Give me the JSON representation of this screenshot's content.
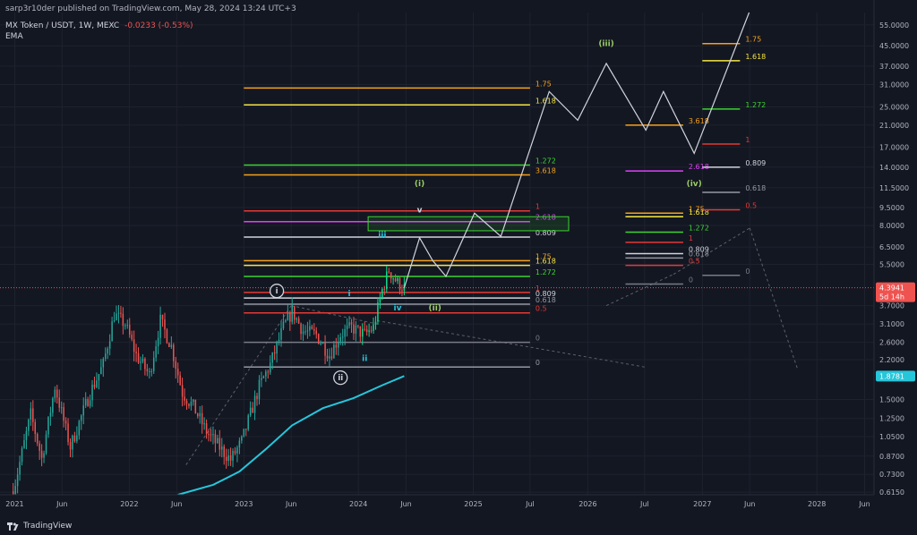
{
  "header": {
    "publisher": "sarp3r10der published on TradingView.com, May 28, 2024 13:24 UTC+3",
    "symbol": "MX Token / USDT, 1W, MEXC",
    "change": "-0.0233 (-0.53%)",
    "indicator": "EMA"
  },
  "footer": {
    "brand": "TradingView"
  },
  "colors": {
    "background": "#131722",
    "up": "#26a69a",
    "up_bright": "#11d68c",
    "down": "#ef5350",
    "ema": "#26c6da",
    "fib_orange": "#f7a21b",
    "fib_yellow": "#f5e642",
    "fib_green": "#3dd431",
    "fib_red": "#e53935",
    "fib_magenta": "#e040fb",
    "fib_white": "#d1d4dc",
    "fib_gray": "#9598a1",
    "wave_cyan": "#26c6da",
    "wave_green": "#9ccc65"
  },
  "chart_data": {
    "type": "candlestick",
    "title": "MX Token / USDT, 1W, MEXC",
    "y_scale": "log",
    "ylim": [
      0.6,
      62
    ],
    "x_range": [
      "2020-11-15",
      "2028-07-01"
    ],
    "x_ticks": [
      {
        "label": "2021",
        "date": "2021-01-01"
      },
      {
        "label": "Jun",
        "date": "2021-06-01"
      },
      {
        "label": "2022",
        "date": "2022-01-01"
      },
      {
        "label": "Jun",
        "date": "2022-06-01"
      },
      {
        "label": "2023",
        "date": "2023-01-01"
      },
      {
        "label": "Jun",
        "date": "2023-06-01"
      },
      {
        "label": "2024",
        "date": "2024-01-01"
      },
      {
        "label": "Jun",
        "date": "2024-06-01"
      },
      {
        "label": "2025",
        "date": "2025-01-01"
      },
      {
        "label": "Jul",
        "date": "2025-07-01"
      },
      {
        "label": "2026",
        "date": "2026-01-01"
      },
      {
        "label": "Jul",
        "date": "2026-07-01"
      },
      {
        "label": "2027",
        "date": "2027-01-01"
      },
      {
        "label": "Jun",
        "date": "2027-06-01"
      },
      {
        "label": "2028",
        "date": "2028-01-01"
      },
      {
        "label": "Jun",
        "date": "2028-06-01"
      }
    ],
    "y_ticks": [
      {
        "label": "55.0000",
        "value": 55
      },
      {
        "label": "45.0000",
        "value": 45
      },
      {
        "label": "37.0000",
        "value": 37
      },
      {
        "label": "31.0000",
        "value": 31
      },
      {
        "label": "25.0000",
        "value": 25
      },
      {
        "label": "21.0000",
        "value": 21
      },
      {
        "label": "17.0000",
        "value": 17
      },
      {
        "label": "14.0000",
        "value": 14
      },
      {
        "label": "11.5000",
        "value": 11.5
      },
      {
        "label": "9.5000",
        "value": 9.5
      },
      {
        "label": "8.0000",
        "value": 8
      },
      {
        "label": "6.5000",
        "value": 6.5
      },
      {
        "label": "5.5000",
        "value": 5.5
      },
      {
        "label": "3.7000",
        "value": 3.7
      },
      {
        "label": "3.1000",
        "value": 3.1
      },
      {
        "label": "2.6000",
        "value": 2.6
      },
      {
        "label": "2.2000",
        "value": 2.2
      },
      {
        "label": "1.5000",
        "value": 1.5
      },
      {
        "label": "1.2500",
        "value": 1.25
      },
      {
        "label": "1.0500",
        "value": 1.05
      },
      {
        "label": "0.8700",
        "value": 0.87
      },
      {
        "label": "0.7300",
        "value": 0.73
      },
      {
        "label": "0.6150",
        "value": 0.615
      }
    ],
    "price_tags": [
      {
        "value": 4.3941,
        "label": "4.3941",
        "sublabel": "5d 14h",
        "color": "#ef5350"
      },
      {
        "value": 1.8781,
        "label": "1.8781",
        "color": "#26c6da"
      }
    ],
    "current_price": 4.3941,
    "price_anchors": [
      {
        "date": "2020-12-27",
        "price": 0.62
      },
      {
        "date": "2021-02-21",
        "price": 1.3
      },
      {
        "date": "2021-03-28",
        "price": 0.85
      },
      {
        "date": "2021-05-09",
        "price": 1.7
      },
      {
        "date": "2021-06-27",
        "price": 0.95
      },
      {
        "date": "2021-08-29",
        "price": 1.6
      },
      {
        "date": "2021-10-10",
        "price": 2.1
      },
      {
        "date": "2021-11-14",
        "price": 3.4
      },
      {
        "date": "2021-12-19",
        "price": 3.1
      },
      {
        "date": "2022-01-23",
        "price": 2.3
      },
      {
        "date": "2022-03-06",
        "price": 1.9
      },
      {
        "date": "2022-04-10",
        "price": 3.2
      },
      {
        "date": "2022-05-15",
        "price": 2.5
      },
      {
        "date": "2022-06-19",
        "price": 1.6
      },
      {
        "date": "2022-07-24",
        "price": 1.4
      },
      {
        "date": "2022-09-04",
        "price": 1.1
      },
      {
        "date": "2022-10-30",
        "price": 0.9
      },
      {
        "date": "2022-11-20",
        "price": 0.84
      },
      {
        "date": "2022-12-25",
        "price": 1.0
      },
      {
        "date": "2023-02-19",
        "price": 1.7
      },
      {
        "date": "2023-03-26",
        "price": 2.1
      },
      {
        "date": "2023-05-07",
        "price": 3.0
      },
      {
        "date": "2023-06-04",
        "price": 3.5
      },
      {
        "date": "2023-07-09",
        "price": 2.9
      },
      {
        "date": "2023-08-20",
        "price": 2.8
      },
      {
        "date": "2023-10-01",
        "price": 2.3
      },
      {
        "date": "2023-11-05",
        "price": 2.8
      },
      {
        "date": "2023-12-10",
        "price": 3.0
      },
      {
        "date": "2024-01-21",
        "price": 2.8
      },
      {
        "date": "2024-02-18",
        "price": 3.0
      },
      {
        "date": "2024-03-17",
        "price": 4.3
      },
      {
        "date": "2024-04-07",
        "price": 5.2
      },
      {
        "date": "2024-05-05",
        "price": 4.6
      },
      {
        "date": "2024-05-26",
        "price": 4.39
      }
    ],
    "ema": [
      {
        "date": "2022-06-05",
        "value": 0.6
      },
      {
        "date": "2022-09-25",
        "value": 0.66
      },
      {
        "date": "2022-12-18",
        "value": 0.75
      },
      {
        "date": "2023-03-12",
        "value": 0.93
      },
      {
        "date": "2023-06-04",
        "value": 1.17
      },
      {
        "date": "2023-09-10",
        "value": 1.38
      },
      {
        "date": "2023-12-17",
        "value": 1.52
      },
      {
        "date": "2024-03-17",
        "value": 1.72
      },
      {
        "date": "2024-05-26",
        "value": 1.88
      }
    ],
    "projection_path": [
      {
        "date": "2024-05-26",
        "price": 4.39
      },
      {
        "date": "2024-07-14",
        "price": 7.1
      },
      {
        "date": "2024-08-25",
        "price": 5.7
      },
      {
        "date": "2024-10-06",
        "price": 4.9
      },
      {
        "date": "2025-01-05",
        "price": 9.0
      },
      {
        "date": "2025-03-30",
        "price": 7.2
      },
      {
        "date": "2025-08-31",
        "price": 29.0
      },
      {
        "date": "2025-11-30",
        "price": 22.0
      },
      {
        "date": "2026-03-01",
        "price": 38.0
      },
      {
        "date": "2026-07-05",
        "price": 20.0
      },
      {
        "date": "2026-08-30",
        "price": 29.0
      },
      {
        "date": "2026-12-06",
        "price": 16.0
      },
      {
        "date": "2027-05-30",
        "price": 62.0
      }
    ],
    "fib_sets": [
      {
        "name": "fib-near",
        "x_range": [
          "2023-01-01",
          "2025-07-01"
        ],
        "levels": [
          {
            "label": "1.75",
            "price": 5.7,
            "color": "#f7a21b"
          },
          {
            "label": "1.618",
            "price": 5.45,
            "color": "#f5e642"
          },
          {
            "label": "1.272",
            "price": 4.9,
            "color": "#3dd431"
          },
          {
            "label": "1",
            "price": 4.2,
            "color": "#e53935"
          },
          {
            "label": "0.809",
            "price": 3.98,
            "color": "#d1d4dc"
          },
          {
            "label": "0.618",
            "price": 3.75,
            "color": "#9598a1"
          },
          {
            "label": "0.5",
            "price": 3.45,
            "color": "#e53935"
          },
          {
            "label": "0",
            "price": 2.6,
            "color": "#787b86"
          }
        ]
      },
      {
        "name": "fib-main",
        "x_range": [
          "2023-01-01",
          "2025-07-01"
        ],
        "levels": [
          {
            "label": "1.75",
            "price": 30.0,
            "color": "#f7a21b"
          },
          {
            "label": "1.618",
            "price": 25.5,
            "color": "#f5e642"
          },
          {
            "label": "1.272",
            "price": 14.3,
            "color": "#3dd431"
          },
          {
            "label": "3.618",
            "price": 13.0,
            "color": "#f7a21b"
          },
          {
            "label": "1",
            "price": 9.2,
            "color": "#e53935"
          },
          {
            "label": "2.618",
            "price": 8.3,
            "color": "#e040fb"
          },
          {
            "label": "0.809",
            "price": 7.15,
            "color": "#d1d4dc"
          },
          {
            "label": "0",
            "price": 2.05,
            "color": "#9598a1"
          }
        ]
      },
      {
        "name": "fib-far",
        "x_range": [
          "2026-05-01",
          "2026-11-01"
        ],
        "levels": [
          {
            "label": "3.618",
            "price": 21.0,
            "color": "#f7a21b"
          },
          {
            "label": "2.618",
            "price": 13.5,
            "color": "#e040fb"
          },
          {
            "label": "1.75",
            "price": 9.0,
            "color": "#f7a21b"
          },
          {
            "label": "1.618",
            "price": 8.7,
            "color": "#f5e642"
          },
          {
            "label": "1.272",
            "price": 7.5,
            "color": "#3dd431"
          },
          {
            "label": "1",
            "price": 6.8,
            "color": "#e53935"
          },
          {
            "label": "0.809",
            "price": 6.1,
            "color": "#d1d4dc"
          },
          {
            "label": "0.618",
            "price": 5.85,
            "color": "#9598a1"
          },
          {
            "label": "0.5",
            "price": 5.45,
            "color": "#e53935"
          },
          {
            "label": "0",
            "price": 4.55,
            "color": "#787b86"
          }
        ]
      },
      {
        "name": "fib-top",
        "x_range": [
          "2027-01-01",
          "2027-05-01"
        ],
        "levels": [
          {
            "label": "1.75",
            "price": 46.0,
            "color": "#f7a21b"
          },
          {
            "label": "1.618",
            "price": 39.0,
            "color": "#f5e642"
          },
          {
            "label": "1.272",
            "price": 24.5,
            "color": "#3dd431"
          },
          {
            "label": "1",
            "price": 17.5,
            "color": "#e53935"
          },
          {
            "label": "0.809",
            "price": 14.0,
            "color": "#d1d4dc"
          },
          {
            "label": "0.618",
            "price": 11.0,
            "color": "#9598a1"
          },
          {
            "label": "0.5",
            "price": 9.3,
            "color": "#e53935"
          },
          {
            "label": "0",
            "price": 4.95,
            "color": "#787b86"
          }
        ]
      }
    ],
    "target_box": {
      "x_range": [
        "2024-02-01",
        "2025-11-01"
      ],
      "y_range": [
        7.6,
        8.7
      ],
      "color": "#3dd431"
    },
    "wave_labels": [
      {
        "label": "i",
        "date": "2023-04-16",
        "price": 4.26,
        "circled": true,
        "color": "#d1d4dc"
      },
      {
        "label": "ii",
        "date": "2023-11-05",
        "price": 1.85,
        "circled": true,
        "color": "#d1d4dc"
      },
      {
        "label": "i",
        "date": "2023-12-03",
        "price": 4.15,
        "color": "#26c6da"
      },
      {
        "label": "ii",
        "date": "2024-01-21",
        "price": 2.23,
        "color": "#26c6da"
      },
      {
        "label": "iii",
        "date": "2024-03-17",
        "price": 7.3,
        "color": "#26c6da"
      },
      {
        "label": "iv",
        "date": "2024-05-05",
        "price": 3.62,
        "color": "#26c6da"
      },
      {
        "label": "v",
        "date": "2024-07-14",
        "price": 9.3,
        "color": "#d1d4dc"
      },
      {
        "label": "(i)",
        "date": "2024-07-14",
        "price": 12.0,
        "color": "#9ccc65"
      },
      {
        "label": "(ii)",
        "date": "2024-09-01",
        "price": 3.62,
        "color": "#9ccc65"
      },
      {
        "label": "(iii)",
        "date": "2026-03-01",
        "price": 46.0,
        "color": "#9ccc65"
      },
      {
        "label": "(iv)",
        "date": "2026-12-06",
        "price": 12.0,
        "color": "#9ccc65"
      }
    ],
    "dashed_guides": [
      [
        {
          "date": "2022-07-01",
          "price": 0.8
        },
        {
          "date": "2023-06-01",
          "price": 3.7
        }
      ],
      [
        {
          "date": "2023-06-01",
          "price": 3.7
        },
        {
          "date": "2024-03-01",
          "price": 3.1
        }
      ],
      [
        {
          "date": "2024-03-01",
          "price": 3.2
        },
        {
          "date": "2026-07-01",
          "price": 2.05
        }
      ],
      [
        {
          "date": "2026-03-01",
          "price": 3.7
        },
        {
          "date": "2026-10-01",
          "price": 5.0
        }
      ],
      [
        {
          "date": "2026-10-01",
          "price": 5.0
        },
        {
          "date": "2027-06-01",
          "price": 7.8
        }
      ],
      [
        {
          "date": "2027-06-01",
          "price": 7.8
        },
        {
          "date": "2027-11-01",
          "price": 2.0
        }
      ]
    ]
  }
}
